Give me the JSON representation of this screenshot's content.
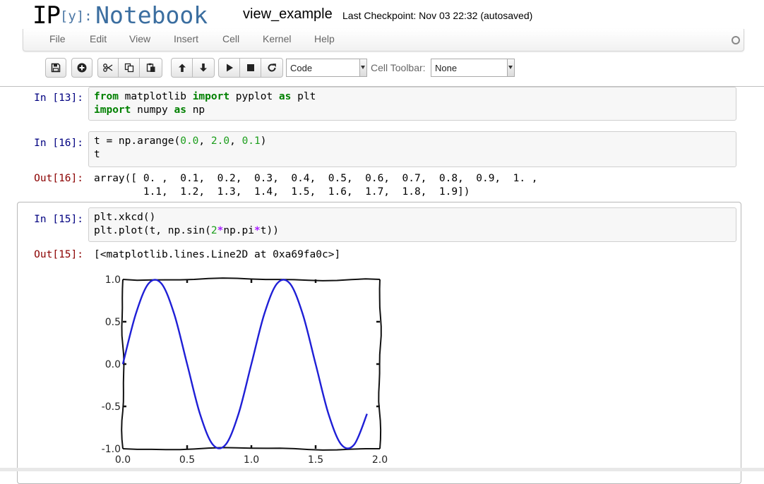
{
  "header": {
    "logo_ip": "IP",
    "logo_y": "[y]:",
    "logo_notebook": "Notebook",
    "notebook_name": "view_example",
    "checkpoint": "Last Checkpoint: Nov 03 22:32 (autosaved)"
  },
  "menubar": {
    "items": [
      "File",
      "Edit",
      "View",
      "Insert",
      "Cell",
      "Kernel",
      "Help"
    ]
  },
  "toolbar": {
    "buttons": [
      "save-icon",
      "plus-circle-icon",
      "cut-icon",
      "copy-icon",
      "paste-icon",
      "arrow-up-icon",
      "arrow-down-icon",
      "play-icon",
      "stop-icon",
      "restart-icon"
    ],
    "cell_type": "Code",
    "cell_toolbar_label": "Cell Toolbar:",
    "cell_toolbar_value": "None"
  },
  "cells": [
    {
      "prompt": "In [13]:",
      "lines": [
        [
          [
            "kw",
            "from"
          ],
          [
            "",
            " matplotlib "
          ],
          [
            "kw",
            "import"
          ],
          [
            "",
            " pyplot "
          ],
          [
            "kw",
            "as"
          ],
          [
            "",
            " plt"
          ]
        ],
        [
          [
            "kw",
            "import"
          ],
          [
            "",
            " numpy "
          ],
          [
            "kw",
            "as"
          ],
          [
            "",
            " np"
          ]
        ]
      ]
    },
    {
      "prompt": "In [16]:",
      "lines": [
        [
          [
            "",
            "t = np.arange("
          ],
          [
            "num",
            "0.0"
          ],
          [
            "",
            ", "
          ],
          [
            "num",
            "2.0"
          ],
          [
            "",
            ", "
          ],
          [
            "num",
            "0.1"
          ],
          [
            "",
            ")"
          ]
        ],
        [
          [
            "",
            "t"
          ]
        ]
      ],
      "out_prompt": "Out[16]:",
      "output": "array([ 0. ,  0.1,  0.2,  0.3,  0.4,  0.5,  0.6,  0.7,  0.8,  0.9,  1. ,\n        1.1,  1.2,  1.3,  1.4,  1.5,  1.6,  1.7,  1.8,  1.9])"
    },
    {
      "prompt": "In [15]:",
      "lines": [
        [
          [
            "",
            "plt.xkcd()"
          ]
        ],
        [
          [
            "",
            "plt.plot(t, np.sin("
          ],
          [
            "num",
            "2"
          ],
          [
            "op",
            "*"
          ],
          [
            "",
            "np.pi"
          ],
          [
            "op",
            "*"
          ],
          [
            "",
            "t))"
          ]
        ]
      ],
      "out_prompt": "Out[15]:",
      "output": "[<matplotlib.lines.Line2D at 0xa69fa0c>]"
    }
  ],
  "chart_data": {
    "type": "line",
    "x": [
      0.0,
      0.1,
      0.2,
      0.3,
      0.4,
      0.5,
      0.6,
      0.7,
      0.8,
      0.9,
      1.0,
      1.1,
      1.2,
      1.3,
      1.4,
      1.5,
      1.6,
      1.7,
      1.8,
      1.9
    ],
    "series": [
      {
        "values": [
          0.0,
          0.588,
          0.951,
          0.951,
          0.588,
          0.0,
          -0.588,
          -0.951,
          -0.951,
          -0.588,
          0.0,
          0.588,
          0.951,
          0.951,
          0.588,
          0.0,
          -0.588,
          -0.951,
          -0.951,
          -0.588
        ],
        "color": "#1f1fd6"
      }
    ],
    "xlim": [
      0.0,
      2.0
    ],
    "ylim": [
      -1.0,
      1.0
    ],
    "xticks": [
      "0.0",
      "0.5",
      "1.0",
      "1.5",
      "2.0"
    ],
    "yticks": [
      "1.0",
      "0.5",
      "0.0",
      "-0.5",
      "-1.0"
    ],
    "style": "xkcd",
    "grid": false
  }
}
